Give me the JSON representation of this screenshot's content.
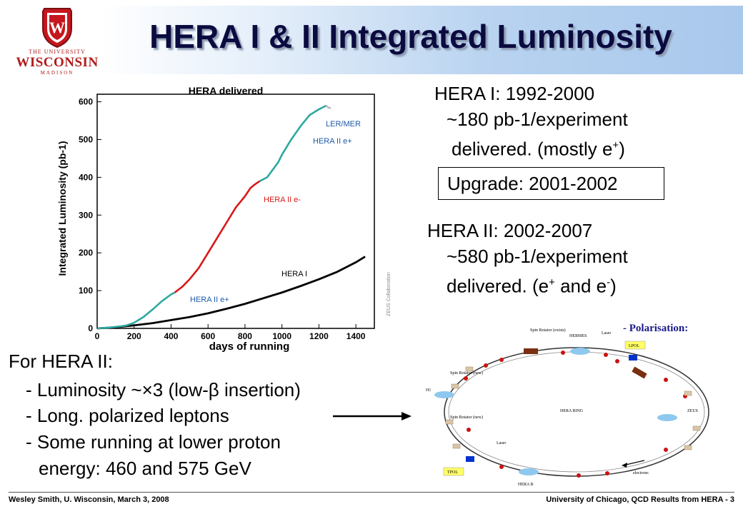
{
  "header": {
    "title": "HERA I & II Integrated Luminosity",
    "logo": {
      "line1": "THE UNIVERSITY",
      "line2": "WISCONSIN",
      "line3": "MADISON",
      "letter": "W"
    }
  },
  "chart_data": {
    "type": "line",
    "title": "HERA delivered",
    "xlabel": "days of running",
    "ylabel": "Integrated Luminosity (pb-1)",
    "xlim": [
      0,
      1500
    ],
    "ylim": [
      0,
      620
    ],
    "x_ticks": [
      "0",
      "200",
      "400",
      "600",
      "800",
      "1000",
      "1200",
      "1400"
    ],
    "y_ticks": [
      "0",
      "100",
      "200",
      "300",
      "400",
      "500",
      "600"
    ],
    "grid": false,
    "watermark": "ZEUS Collaboration",
    "series": [
      {
        "name": "HERA I",
        "color": "#000000",
        "x": [
          0,
          100,
          200,
          300,
          400,
          500,
          600,
          700,
          800,
          900,
          1000,
          1100,
          1200,
          1300,
          1400,
          1450
        ],
        "y": [
          0,
          3,
          8,
          14,
          22,
          30,
          40,
          52,
          65,
          80,
          95,
          112,
          130,
          150,
          175,
          190
        ]
      },
      {
        "name": "HERA II e+",
        "color": "#2ea8a0",
        "x": [
          0,
          60,
          120,
          160,
          200,
          250,
          300,
          350,
          400,
          420
        ],
        "y": [
          0,
          2,
          5,
          8,
          15,
          30,
          50,
          72,
          90,
          95
        ]
      },
      {
        "name": "HERA II e-",
        "color": "#d81818",
        "x": [
          420,
          460,
          500,
          550,
          600,
          650,
          700,
          750,
          800,
          830,
          850,
          880
        ],
        "y": [
          95,
          110,
          130,
          160,
          200,
          240,
          280,
          320,
          350,
          372,
          380,
          390
        ]
      },
      {
        "name": "HERA II e+",
        "color": "#2ea8a0",
        "x": [
          880,
          920,
          950,
          980,
          1000,
          1050,
          1100,
          1150,
          1200,
          1220,
          1240
        ],
        "y": [
          390,
          400,
          420,
          440,
          460,
          500,
          535,
          565,
          580,
          585,
          590
        ]
      },
      {
        "name": "LER/MER",
        "color": "#bbbbbb",
        "x": [
          1240,
          1250,
          1265
        ],
        "y": [
          590,
          585,
          583
        ]
      }
    ],
    "series_labels": {
      "hera2_eplus_low": "HERA II e+",
      "hera2_eminus": "HERA II e-",
      "hera2_eplus_high": "HERA II e+",
      "hera1": "HERA I",
      "lermer": "LER/MER"
    }
  },
  "hera1": {
    "line1": "HERA I: 1992-2000",
    "line2": "~180 pb-1/experiment",
    "line3_text": "delivered. (mostly e",
    "line3_sup": "+",
    "line3_end": ")"
  },
  "upgrade": "Upgrade: 2001-2002",
  "hera2": {
    "line1": "HERA II: 2002-2007",
    "line2": "~580 pb-1/experiment",
    "line3_a": "delivered. (e",
    "line3_sup1": "+",
    "line3_b": " and e",
    "line3_sup2": "-",
    "line3_end": ")"
  },
  "hera2_notes": {
    "heading": "For HERA II:",
    "bullet1_a": "- Luminosity ~",
    "bullet1_times": "×",
    "bullet1_b": "3 (low-",
    "bullet1_beta": "β",
    "bullet1_c": " insertion)",
    "bullet2": "- Long. polarized leptons",
    "bullet3": "- Some running at lower proton",
    "bullet4": "energy:  460 and 575 GeV"
  },
  "ring": {
    "polarisation": "- Polarisation:",
    "spin_rotator_exists": "Spin Rotator (exists)",
    "hermes": "HERMES",
    "laser_top": "Laser",
    "lpol": "LPOL",
    "spin_rotator_new_1": "Spin Rotator (new)",
    "h1": "H1",
    "hera_ring": "HERA RING",
    "zeus": "ZEUS",
    "spin_rotator_new_2": "Spin Rotator (new)",
    "laser_bottom": "Laser",
    "tpol": "TPOL",
    "hera_b": "HERA B",
    "electrons": "electrons"
  },
  "footer": {
    "left": "Wesley Smith, U. Wisconsin, March 3, 2008",
    "right": "University of Chicago, QCD Results from HERA -  3"
  }
}
